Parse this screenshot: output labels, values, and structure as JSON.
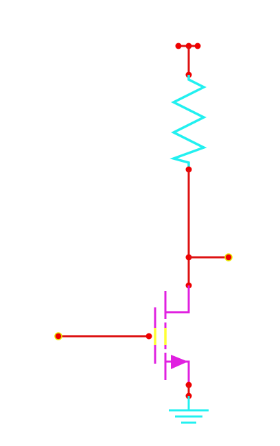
{
  "diagram": {
    "type": "circuit-schematic",
    "components": [
      {
        "kind": "supply-terminal"
      },
      {
        "kind": "resistor",
        "shape": "zigzag",
        "color": "#22f0f0"
      },
      {
        "kind": "output-terminal"
      },
      {
        "kind": "n-channel-mosfet",
        "color": "#e020e0"
      },
      {
        "kind": "input-terminal"
      },
      {
        "kind": "ground",
        "color": "#22f0f0"
      }
    ],
    "colors": {
      "wire": "#dd1111",
      "node": "#ee0000",
      "pin_outline": "#e8e800",
      "resistor": "#22f0f0",
      "transistor": "#e020e0",
      "gate_highlight": "#ffff33",
      "ground": "#22f0f0"
    }
  }
}
